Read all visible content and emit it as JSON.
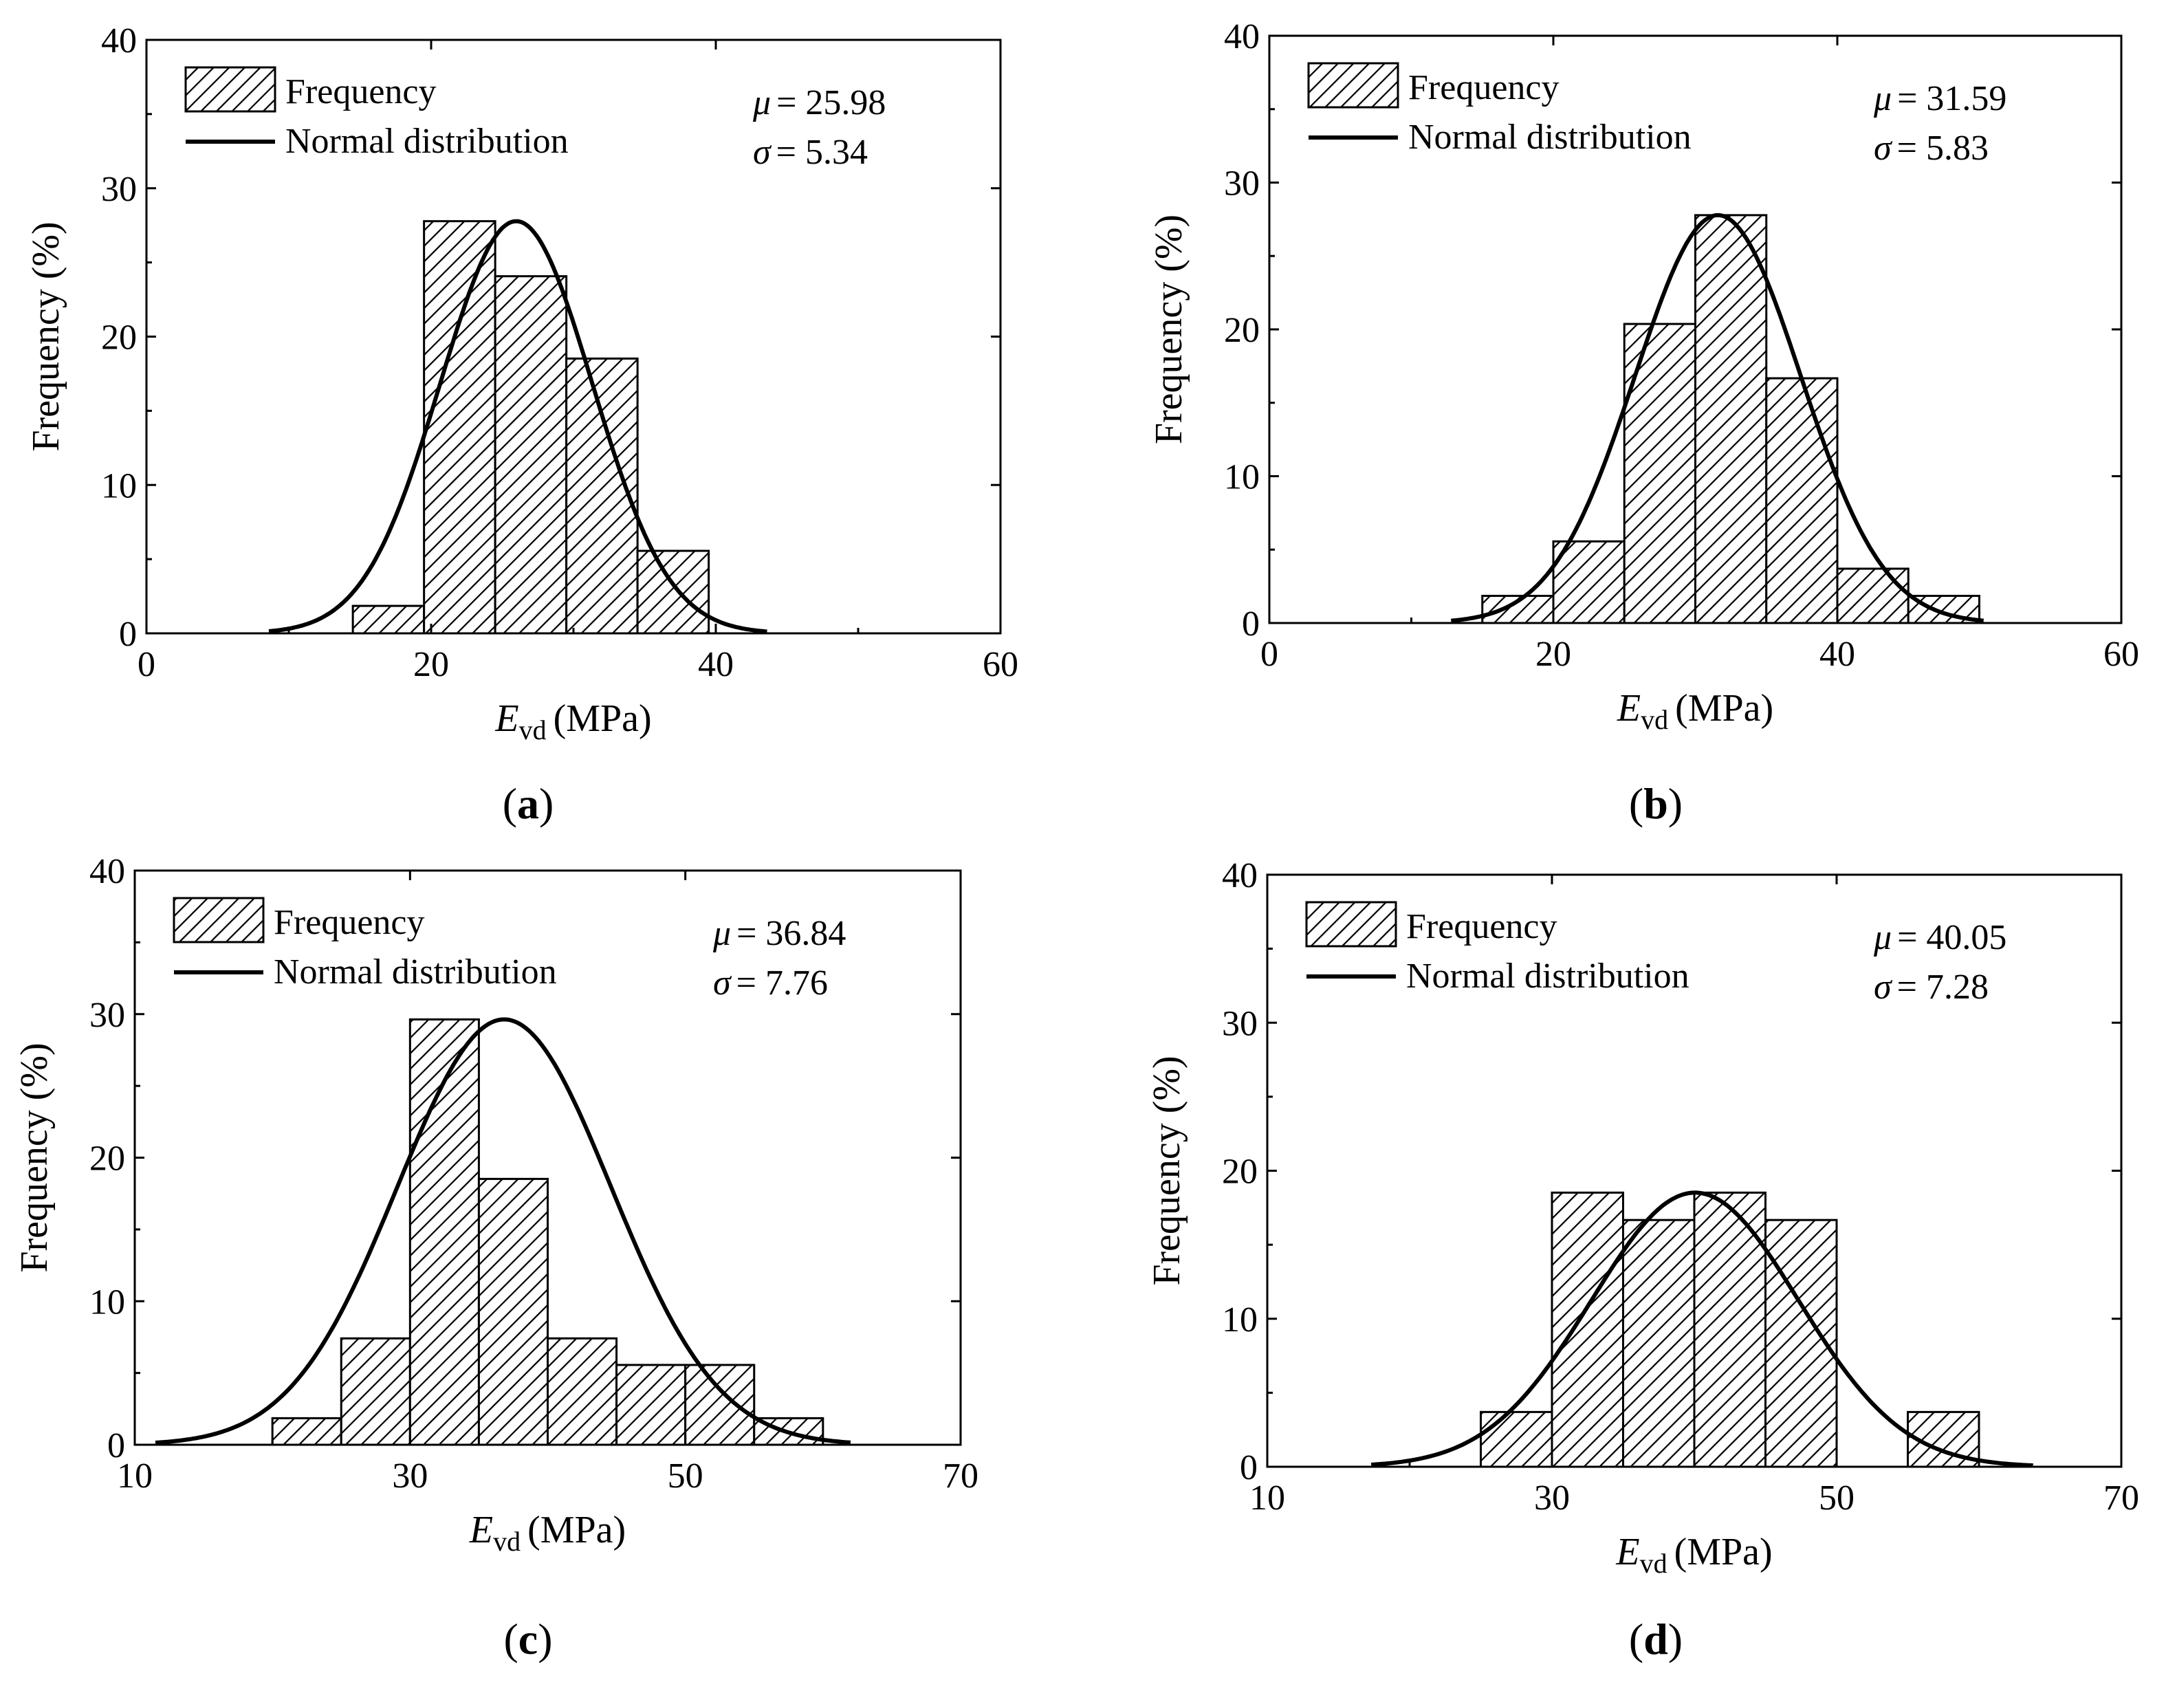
{
  "figure": {
    "title": ""
  },
  "chart_data": [
    {
      "type": "bar",
      "panel_label": "a",
      "title": "",
      "xlabel": {
        "symbol": "E",
        "subscript": "vd",
        "unit": "(MPa)"
      },
      "ylabel": "Frequency (%)",
      "xlim": [
        0,
        60
      ],
      "ylim": [
        0,
        40
      ],
      "xticks": [
        0,
        20,
        40,
        60
      ],
      "yticks": [
        0,
        10,
        20,
        30,
        40
      ],
      "bin_edges": [
        14.5,
        19.5,
        24.5,
        29.5,
        34.5,
        39.5
      ],
      "values": [
        1.85,
        27.78,
        24.07,
        18.52,
        5.56
      ],
      "normal": {
        "mu": 25.98,
        "sigma": 5.34,
        "range": [
          8.6,
          43.6
        ],
        "peak": 27.78
      },
      "legend": {
        "position": "top-left",
        "items": [
          "Frequency",
          "Normal distribution"
        ]
      },
      "stats": {
        "mu_label": "μ",
        "mu_text": "= 25.98",
        "sigma_label": "σ",
        "sigma_text": "= 5.34"
      },
      "grid": false
    },
    {
      "type": "bar",
      "panel_label": "b",
      "title": "",
      "xlabel": {
        "symbol": "E",
        "subscript": "vd",
        "unit": "(MPa)"
      },
      "ylabel": "Frequency (%)",
      "xlim": [
        0,
        60
      ],
      "ylim": [
        0,
        40
      ],
      "xticks": [
        0,
        20,
        40,
        60
      ],
      "yticks": [
        0,
        10,
        20,
        30,
        40
      ],
      "bin_edges": [
        15,
        20,
        25,
        30,
        35,
        40,
        45,
        50
      ],
      "values": [
        1.85,
        5.56,
        20.37,
        27.78,
        16.67,
        3.7,
        1.85
      ],
      "normal": {
        "mu": 31.59,
        "sigma": 5.83,
        "range": [
          12.8,
          50.3
        ],
        "peak": 27.78
      },
      "legend": {
        "position": "top-left",
        "items": [
          "Frequency",
          "Normal distribution"
        ]
      },
      "stats": {
        "mu_label": "μ",
        "mu_text": "= 31.59",
        "sigma_label": "σ",
        "sigma_text": "= 5.83"
      },
      "grid": false
    },
    {
      "type": "bar",
      "panel_label": "c",
      "title": "",
      "xlabel": {
        "symbol": "E",
        "subscript": "vd",
        "unit": "(MPa)"
      },
      "ylabel": "Frequency (%)",
      "xlim": [
        10,
        70
      ],
      "ylim": [
        0,
        40
      ],
      "xticks": [
        10,
        30,
        50,
        70
      ],
      "yticks": [
        0,
        10,
        20,
        30,
        40
      ],
      "bin_edges": [
        20,
        25,
        30,
        35,
        40,
        45,
        50,
        55,
        60
      ],
      "values": [
        1.85,
        7.41,
        29.63,
        18.52,
        7.41,
        5.56,
        5.56,
        1.85
      ],
      "normal": {
        "mu": 36.84,
        "sigma": 7.76,
        "range": [
          11.5,
          62
        ],
        "peak": 29.63
      },
      "legend": {
        "position": "top-left",
        "items": [
          "Frequency",
          "Normal distribution"
        ]
      },
      "stats": {
        "mu_label": "μ",
        "mu_text": "= 36.84",
        "sigma_label": "σ",
        "sigma_text": "= 7.76"
      },
      "grid": false
    },
    {
      "type": "bar",
      "panel_label": "d",
      "title": "",
      "xlabel": {
        "symbol": "E",
        "subscript": "vd",
        "unit": "(MPa)"
      },
      "ylabel": "Frequency (%)",
      "xlim": [
        10,
        70
      ],
      "ylim": [
        0,
        40
      ],
      "xticks": [
        10,
        30,
        50,
        70
      ],
      "yticks": [
        0,
        10,
        20,
        30,
        40
      ],
      "bin_edges": [
        25,
        30,
        35,
        40,
        45,
        50,
        55,
        60
      ],
      "values": [
        3.7,
        18.52,
        16.67,
        18.52,
        16.67,
        0,
        3.7
      ],
      "normal": {
        "mu": 40.05,
        "sigma": 7.28,
        "range": [
          17.3,
          63.8
        ],
        "peak": 18.52
      },
      "legend": {
        "position": "top-left",
        "items": [
          "Frequency",
          "Normal distribution"
        ]
      },
      "stats": {
        "mu_label": "μ",
        "mu_text": "= 40.05",
        "sigma_label": "σ",
        "sigma_text": "= 7.28"
      },
      "grid": false
    }
  ]
}
